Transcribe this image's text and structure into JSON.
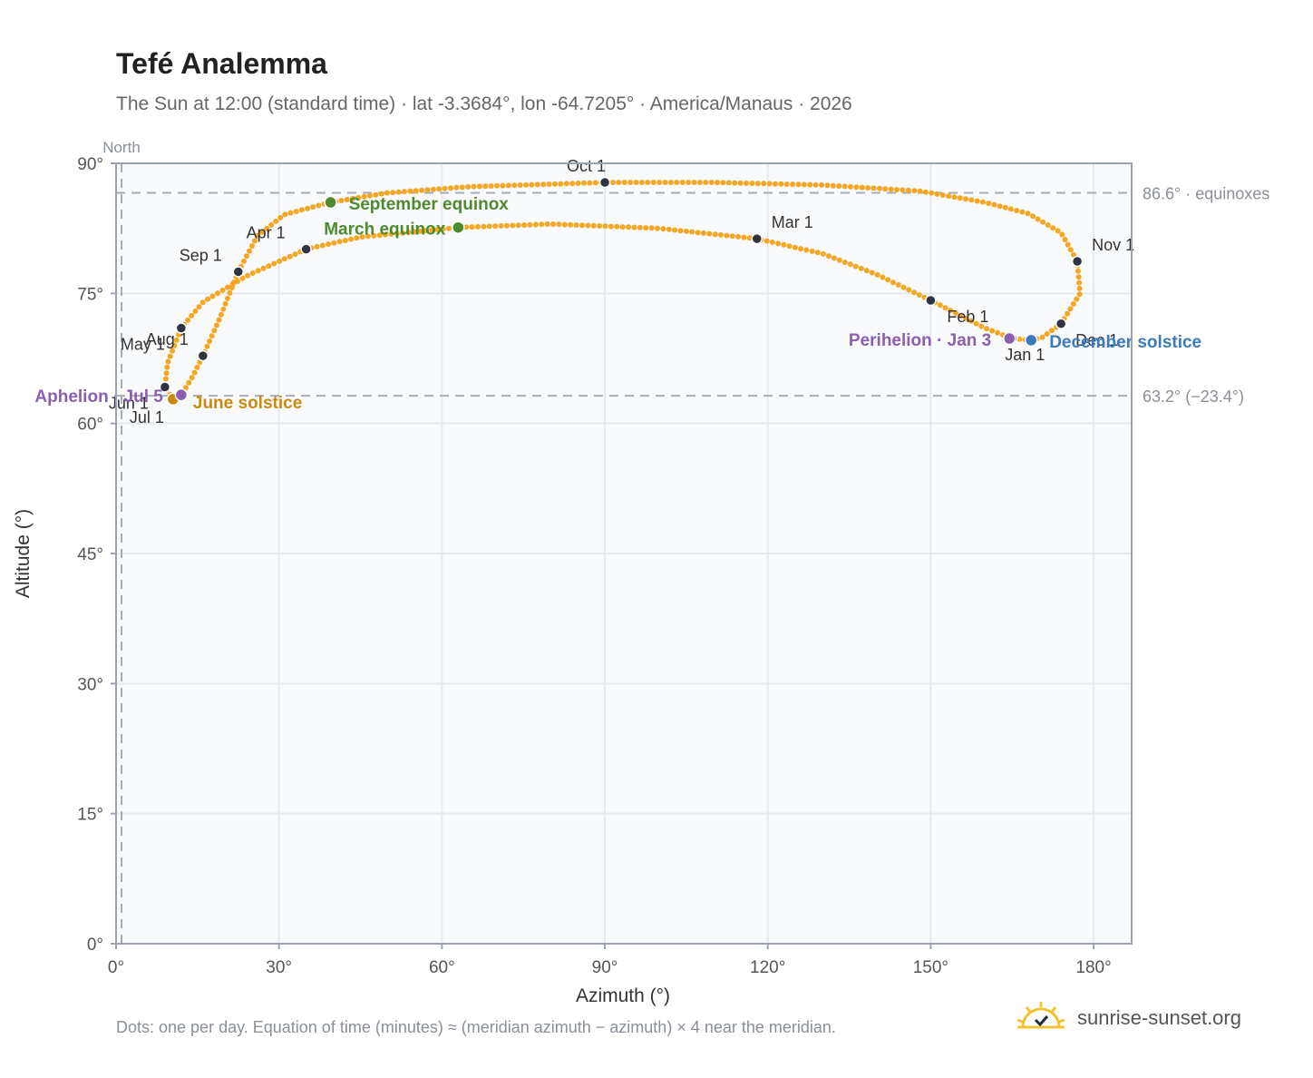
{
  "header": {
    "title": "Tefé Analemma",
    "subtitle": "The Sun at 12:00 (standard time) · lat -3.3684°, lon -64.7205° · America/Manaus · 2026"
  },
  "footer": {
    "note": "Dots: one per day. Equation of time (minutes) ≈ (meridian azimuth − azimuth) × 4 near the meridian.",
    "brand": "sunrise-sunset.org"
  },
  "chart_data": {
    "type": "scatter",
    "xlabel": "Azimuth (°)",
    "ylabel": "Altitude (°)",
    "xlim": [
      0,
      187
    ],
    "ylim": [
      0,
      90
    ],
    "x_ticks": [
      "0°",
      "30°",
      "60°",
      "90°",
      "120°",
      "150°",
      "180°"
    ],
    "x_tick_values": [
      0,
      30,
      60,
      90,
      120,
      150,
      180
    ],
    "y_ticks": [
      "0°",
      "15°",
      "30°",
      "45°",
      "60°",
      "75°",
      "90°"
    ],
    "y_tick_values": [
      0,
      15,
      30,
      45,
      60,
      75,
      90
    ],
    "grid": true,
    "colors": {
      "path": "#f5a623",
      "month_marker": "#2f3440",
      "equinox": "#4e8a2e",
      "june_solstice": "#c98a12",
      "december_solstice": "#3a7bbf",
      "aphelion_perihelion": "#8a5fb0",
      "reference": "#a8adb5",
      "plot_bg": "#f8fafc"
    },
    "reference_lines": [
      {
        "axis": "y",
        "value": 86.6,
        "label": "86.6° · equinoxes"
      },
      {
        "axis": "y",
        "value": 63.2,
        "label": "63.2° (−23.4°)"
      },
      {
        "axis": "x",
        "value": 0,
        "label": "North"
      }
    ],
    "month_markers": [
      {
        "label": "Jan 1",
        "az": 165,
        "alt": 69.8
      },
      {
        "label": "Feb 1",
        "az": 150,
        "alt": 74.2
      },
      {
        "label": "Mar 1",
        "az": 118,
        "alt": 81.3
      },
      {
        "label": "Apr 1",
        "az": 35,
        "alt": 80.1
      },
      {
        "label": "May 1",
        "az": 12,
        "alt": 71.0
      },
      {
        "label": "Jun 1",
        "az": 9,
        "alt": 64.2
      },
      {
        "label": "Jul 1",
        "az": 10.5,
        "alt": 62.8
      },
      {
        "label": "Aug 1",
        "az": 16,
        "alt": 67.8
      },
      {
        "label": "Sep 1",
        "az": 22.5,
        "alt": 77.5
      },
      {
        "label": "Oct 1",
        "az": 90,
        "alt": 87.8
      },
      {
        "label": "Nov 1",
        "az": 177,
        "alt": 78.7
      },
      {
        "label": "Dec 1",
        "az": 174,
        "alt": 71.5
      }
    ],
    "events": [
      {
        "label": "March equinox",
        "az": 63,
        "alt": 82.6
      },
      {
        "label": "September equinox",
        "az": 39.5,
        "alt": 85.5
      },
      {
        "label": "June solstice",
        "az": 10.5,
        "alt": 62.8
      },
      {
        "label": "December solstice",
        "az": 168.5,
        "alt": 69.6
      },
      {
        "label": "Aphelion · Jul 5",
        "az": 12,
        "alt": 63.3
      },
      {
        "label": "Perihelion · Jan 3",
        "az": 164.5,
        "alt": 69.8
      }
    ],
    "path_keypoints": [
      [
        168.5,
        69.6
      ],
      [
        165,
        69.8
      ],
      [
        160,
        71.0
      ],
      [
        150,
        74.2
      ],
      [
        140,
        77.2
      ],
      [
        130,
        79.6
      ],
      [
        118,
        81.3
      ],
      [
        100,
        82.5
      ],
      [
        80,
        83.0
      ],
      [
        63,
        82.6
      ],
      [
        45,
        81.5
      ],
      [
        35,
        80.1
      ],
      [
        24,
        77.0
      ],
      [
        16,
        74.0
      ],
      [
        12,
        71.0
      ],
      [
        9.5,
        67.0
      ],
      [
        9,
        64.2
      ],
      [
        10.5,
        62.8
      ],
      [
        12,
        63.3
      ],
      [
        14,
        65.3
      ],
      [
        16,
        67.8
      ],
      [
        19,
        72.0
      ],
      [
        22.5,
        77.5
      ],
      [
        26,
        81.6
      ],
      [
        31,
        84.1
      ],
      [
        39.5,
        85.5
      ],
      [
        50,
        86.6
      ],
      [
        65,
        87.3
      ],
      [
        90,
        87.8
      ],
      [
        110,
        87.8
      ],
      [
        130,
        87.5
      ],
      [
        148,
        86.8
      ],
      [
        160,
        85.5
      ],
      [
        168,
        84.2
      ],
      [
        174,
        82.0
      ],
      [
        177,
        78.7
      ],
      [
        177.5,
        75.0
      ],
      [
        174,
        71.5
      ],
      [
        170.5,
        69.9
      ],
      [
        168.5,
        69.6
      ]
    ]
  }
}
